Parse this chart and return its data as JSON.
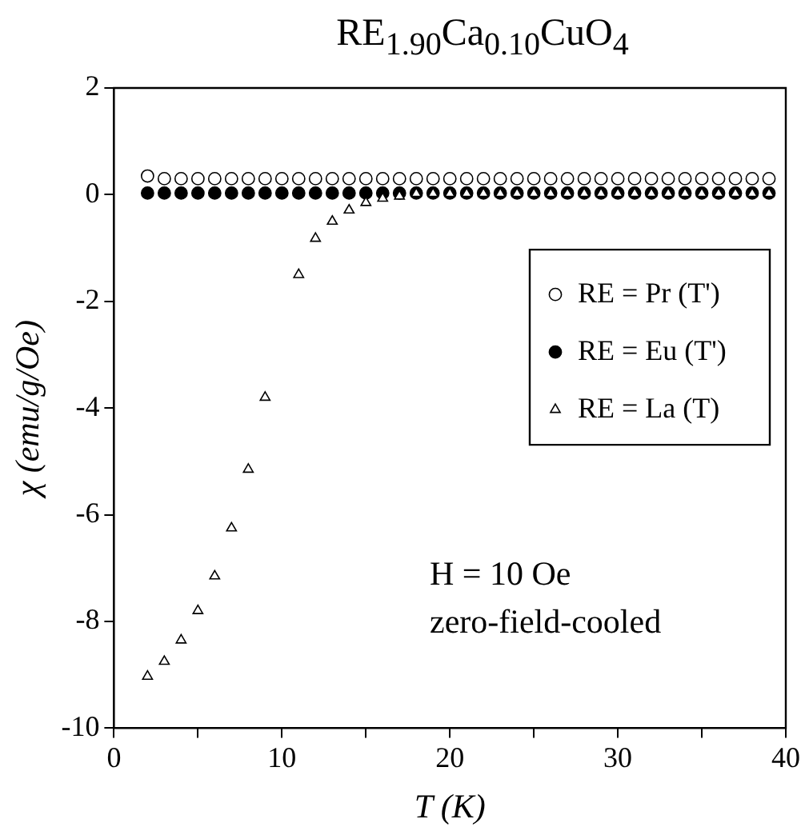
{
  "chart_data": {
    "type": "scatter",
    "title": "RE$_{1.90}$Ca$_{0.10}$CuO$_{4}$",
    "xlabel": "T (K)",
    "ylabel": "χ (emu/g/Oe)",
    "xlim": [
      0,
      40
    ],
    "xticks": [
      0,
      {
        "value": 5,
        "label": null
      },
      10,
      {
        "value": 15,
        "label": null
      },
      20,
      {
        "value": 25,
        "label": null
      },
      30,
      {
        "value": 35,
        "label": null
      },
      40
    ],
    "ylim": [
      -10,
      2
    ],
    "yticks": [
      -10,
      -8,
      -6,
      -4,
      -2,
      0,
      2
    ],
    "grid": false,
    "legend": "right",
    "marker": "circle",
    "series": [
      {
        "name": "RE = Pr (T')",
        "color": "#ffffff",
        "x": [
          2,
          3,
          4,
          5,
          6,
          7,
          8,
          9,
          10,
          11,
          12,
          13,
          14,
          15,
          16,
          17,
          18,
          19,
          20,
          21,
          22,
          23,
          24,
          25,
          26,
          27,
          28,
          29,
          30,
          31,
          32,
          33,
          34,
          35,
          36,
          37,
          38,
          39
        ],
        "values": [
          0.35,
          0.3,
          0.3,
          0.3,
          0.3,
          0.3,
          0.3,
          0.3,
          0.3,
          0.3,
          0.3,
          0.3,
          0.3,
          0.3,
          0.3,
          0.3,
          0.3,
          0.3,
          0.3,
          0.3,
          0.3,
          0.3,
          0.3,
          0.3,
          0.3,
          0.3,
          0.3,
          0.3,
          0.3,
          0.3,
          0.3,
          0.3,
          0.3,
          0.3,
          0.3,
          0.3,
          0.3,
          0.3
        ]
      },
      {
        "name": "RE = Eu (T')",
        "color": "#000000",
        "x": [
          2,
          3,
          4,
          5,
          6,
          7,
          8,
          9,
          10,
          11,
          12,
          13,
          14,
          15,
          16,
          17,
          18,
          19,
          20,
          21,
          22,
          23,
          24,
          25,
          26,
          27,
          28,
          29,
          30,
          31,
          32,
          33,
          34,
          35,
          36,
          37,
          38,
          39
        ],
        "values": [
          0.03,
          0.03,
          0.03,
          0.03,
          0.03,
          0.03,
          0.03,
          0.03,
          0.03,
          0.03,
          0.03,
          0.03,
          0.03,
          0.03,
          0.03,
          0.03,
          0.03,
          0.03,
          0.03,
          0.03,
          0.03,
          0.03,
          0.03,
          0.03,
          0.03,
          0.03,
          0.03,
          0.03,
          0.03,
          0.03,
          0.03,
          0.03,
          0.03,
          0.03,
          0.03,
          0.03,
          0.03,
          0.03
        ]
      },
      {
        "name": "RE = La (T)",
        "color": "#ffffff",
        "marker": "triangle",
        "x": [
          2,
          3,
          4,
          5,
          6,
          7,
          8,
          9,
          11,
          12,
          13,
          14,
          15,
          16,
          17,
          18,
          19,
          20,
          21,
          22,
          23,
          24,
          25,
          26,
          27,
          28,
          29,
          30,
          31,
          32,
          33,
          34,
          35,
          36,
          37,
          38,
          39
        ],
        "values": [
          -9.03,
          -8.75,
          -8.35,
          -7.8,
          -7.15,
          -6.25,
          -5.15,
          -3.8,
          -1.5,
          -0.82,
          -0.5,
          -0.29,
          -0.15,
          -0.07,
          -0.03,
          0.02,
          0.02,
          0.02,
          0.02,
          0.02,
          0.02,
          0.02,
          0.02,
          0.02,
          0.02,
          0.02,
          0.02,
          0.02,
          0.02,
          0.02,
          0.02,
          0.02,
          0.02,
          0.02,
          0.02,
          0.02,
          0.02
        ]
      }
    ],
    "annotations": [
      "H = 10 Oe",
      "zero-field-cooled"
    ]
  }
}
